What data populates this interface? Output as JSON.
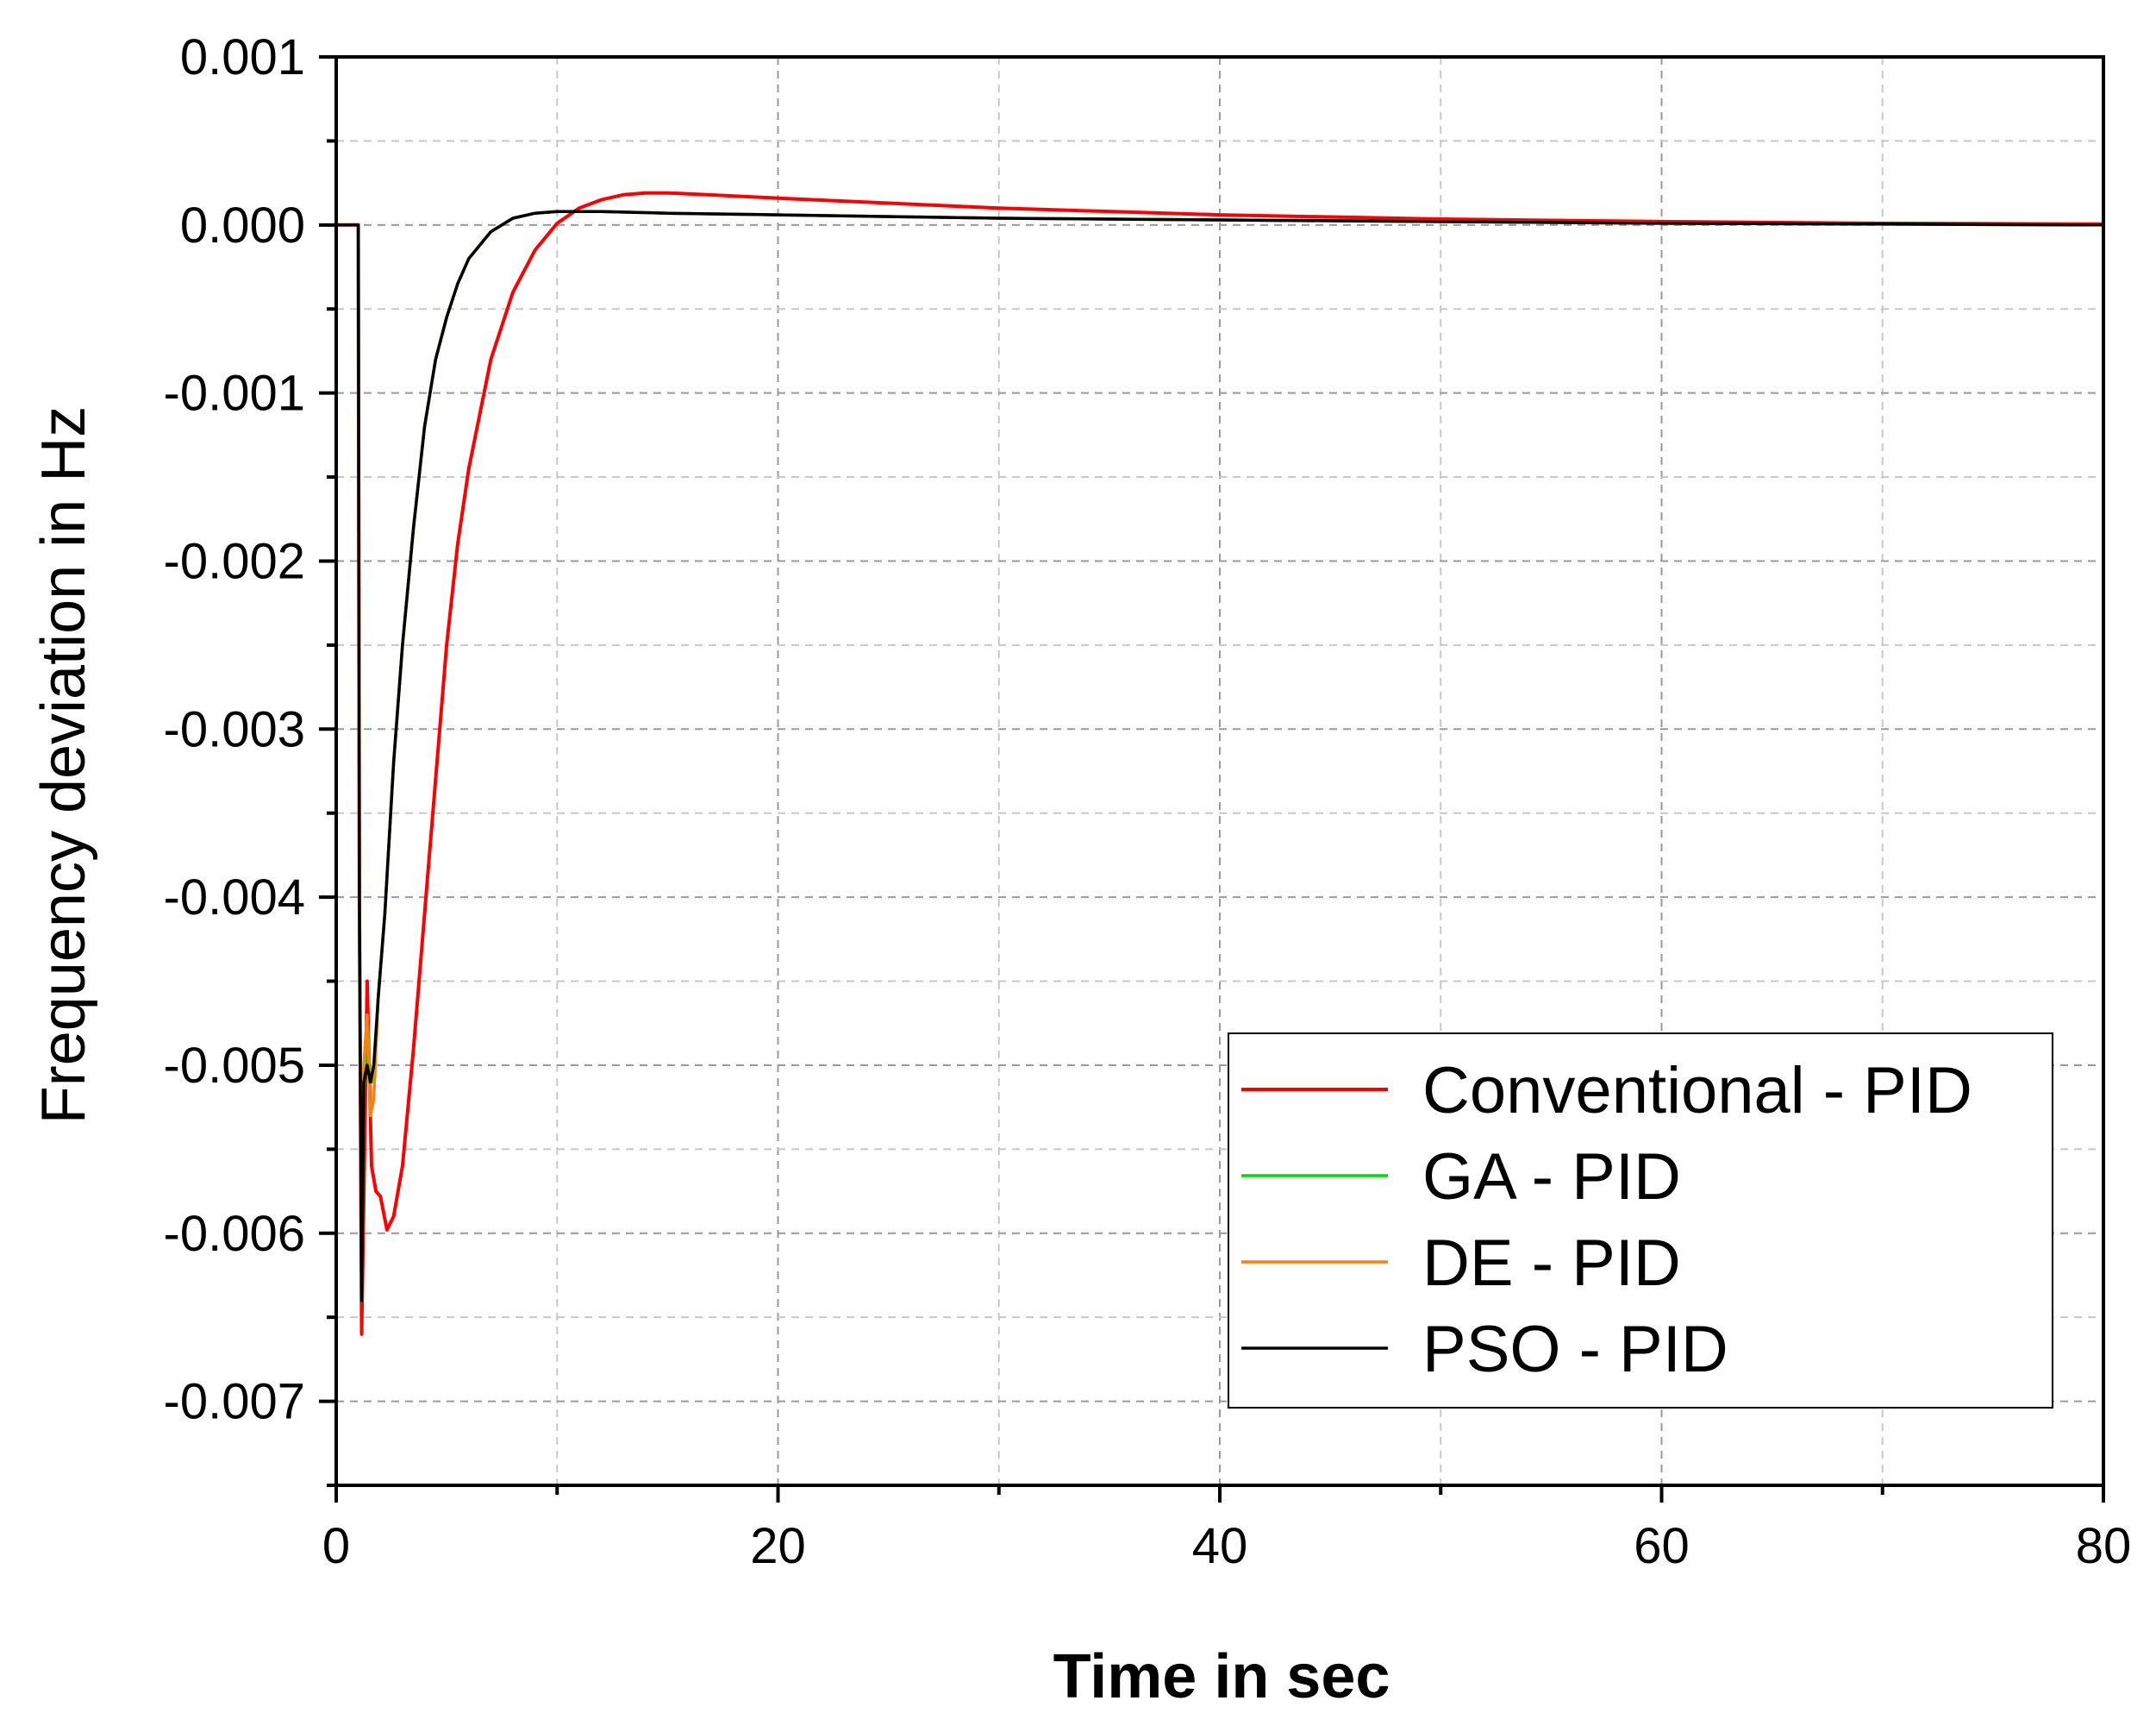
{
  "chart_data": {
    "type": "line",
    "title": "",
    "xlabel": "Time in sec",
    "ylabel": "Frequency deviation in Hz",
    "xlim": [
      0,
      80
    ],
    "ylim": [
      -0.0075,
      0.001
    ],
    "x_ticks": [
      0,
      20,
      40,
      60,
      80
    ],
    "x_tick_labels": [
      "0",
      "20",
      "40",
      "60",
      "80"
    ],
    "y_ticks": [
      0.001,
      0.0,
      -0.001,
      -0.002,
      -0.003,
      -0.004,
      -0.005,
      -0.006,
      -0.007
    ],
    "y_tick_labels": [
      "0.001",
      "0.000",
      "-0.001",
      "-0.002",
      "-0.003",
      "-0.004",
      "-0.005",
      "-0.006",
      "-0.007"
    ],
    "grid": true,
    "legend_position": "bottom-right",
    "series": [
      {
        "name": "Conventional - PID",
        "color": "#ff0000",
        "x": [
          0,
          1.0,
          1.05,
          1.15,
          1.25,
          1.4,
          1.6,
          1.8,
          2.0,
          2.3,
          2.6,
          3.0,
          3.5,
          4.0,
          4.5,
          5.0,
          5.5,
          6.0,
          7.0,
          8.0,
          9.0,
          10.0,
          11.0,
          12.0,
          13.0,
          14.0,
          15.0,
          16.0,
          20.0,
          25.0,
          30.0,
          40.0,
          50.0,
          60.0,
          70.0,
          80.0
        ],
        "y": [
          0,
          0,
          -0.004,
          -0.0066,
          -0.0058,
          -0.0045,
          -0.0056,
          -0.00575,
          -0.00578,
          -0.00598,
          -0.0059,
          -0.0056,
          -0.0049,
          -0.0041,
          -0.0033,
          -0.0025,
          -0.0019,
          -0.00145,
          -0.0008,
          -0.0004,
          -0.00015,
          1e-05,
          0.0001,
          0.00015,
          0.00018,
          0.00019,
          0.00019,
          0.000185,
          0.00016,
          0.00013,
          0.0001,
          6e-05,
          3.5e-05,
          2e-05,
          1e-05,
          5e-06
        ]
      },
      {
        "name": "GA - PID",
        "color": "#00dd00",
        "x": [
          0,
          1.0,
          1.05,
          1.15,
          1.25,
          1.4,
          1.55,
          1.7,
          1.9,
          2.2,
          2.6,
          3.0,
          3.5,
          4.0,
          4.5,
          5.0,
          5.5,
          6.0,
          7.0,
          8.0,
          9.0,
          10.0,
          11.0,
          12.0,
          15.0,
          20.0,
          30.0,
          40.0,
          50.0,
          60.0,
          70.0,
          80.0
        ],
        "y": [
          0,
          0,
          -0.004,
          -0.0064,
          -0.0052,
          -0.0047,
          -0.0051,
          -0.0051,
          -0.0046,
          -0.0041,
          -0.0032,
          -0.0025,
          -0.0018,
          -0.0012,
          -0.0008,
          -0.00055,
          -0.00035,
          -0.0002,
          -4e-05,
          4e-05,
          7e-05,
          8e-05,
          8e-05,
          8e-05,
          7e-05,
          6e-05,
          4e-05,
          3e-05,
          2e-05,
          1e-05,
          5e-06,
          0.0
        ]
      },
      {
        "name": "DE - PID",
        "color": "#ff7f0e",
        "x": [
          0,
          1.0,
          1.05,
          1.15,
          1.25,
          1.4,
          1.55,
          1.7,
          1.9,
          2.2,
          2.6,
          3.0,
          3.5,
          4.0,
          4.5,
          5.0,
          5.5,
          6.0,
          7.0,
          8.0,
          9.0,
          10.0,
          11.0,
          12.0,
          15.0,
          20.0,
          30.0,
          40.0,
          50.0,
          60.0,
          70.0,
          80.0
        ],
        "y": [
          0,
          0,
          -0.004,
          -0.0063,
          -0.005,
          -0.0047,
          -0.0053,
          -0.0052,
          -0.0046,
          -0.0041,
          -0.0032,
          -0.0025,
          -0.0018,
          -0.0012,
          -0.0008,
          -0.00055,
          -0.00035,
          -0.0002,
          -4e-05,
          4e-05,
          7e-05,
          8e-05,
          8e-05,
          8e-05,
          7e-05,
          6e-05,
          4e-05,
          3e-05,
          2e-05,
          1e-05,
          5e-06,
          0.0
        ]
      },
      {
        "name": "PSO - PID",
        "color": "#000000",
        "x": [
          0,
          1.0,
          1.05,
          1.15,
          1.25,
          1.4,
          1.55,
          1.7,
          1.9,
          2.2,
          2.6,
          3.0,
          3.5,
          4.0,
          4.5,
          5.0,
          5.5,
          6.0,
          7.0,
          8.0,
          9.0,
          10.0,
          11.0,
          12.0,
          15.0,
          20.0,
          30.0,
          40.0,
          50.0,
          60.0,
          70.0,
          80.0
        ],
        "y": [
          0,
          0,
          -0.004,
          -0.0064,
          -0.0051,
          -0.005,
          -0.0051,
          -0.005,
          -0.0046,
          -0.0041,
          -0.0032,
          -0.0025,
          -0.0018,
          -0.0012,
          -0.0008,
          -0.00055,
          -0.00035,
          -0.0002,
          -4e-05,
          4e-05,
          7e-05,
          8e-05,
          8e-05,
          8e-05,
          7e-05,
          6e-05,
          4e-05,
          3e-05,
          2e-05,
          1e-05,
          5e-06,
          0.0
        ]
      }
    ]
  }
}
